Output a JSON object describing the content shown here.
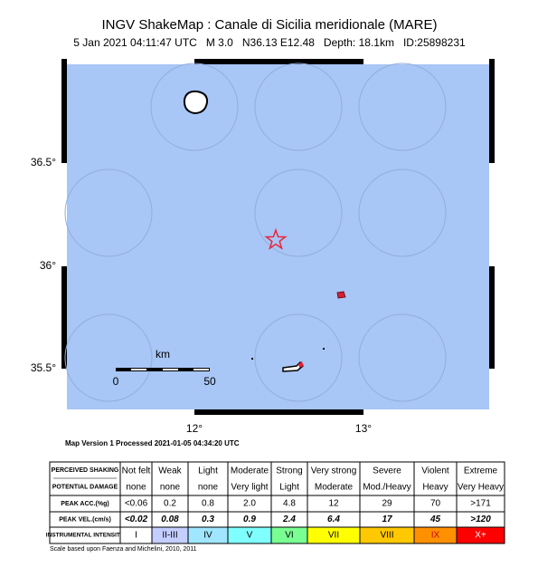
{
  "header": {
    "title": "INGV ShakeMap : Canale di Sicilia meridionale (MARE)",
    "subtitle": "5 Jan 2021 04:11:47 UTC   M 3.0   N36.13 E12.48   Depth: 18.1km   ID:25898231"
  },
  "map": {
    "lat_labels": [
      "36.5°",
      "36°",
      "35.5°"
    ],
    "lon_labels": [
      "12°",
      "13°"
    ],
    "scale": {
      "unit": "km",
      "start": "0",
      "end": "50"
    }
  },
  "version_note": "Map Version 1 Processed 2021-01-05 04:34:20 UTC",
  "table": {
    "row_headers": [
      "PERCEIVED SHAKING",
      "POTENTIAL DAMAGE",
      "PEAK ACC.(%g)",
      "PEAK VEL.(cm/s)",
      "INSTRUMENTAL INTENSITY"
    ],
    "rows": [
      [
        "Not felt",
        "Weak",
        "Light",
        "Moderate",
        "Strong",
        "Very strong",
        "Severe",
        "Violent",
        "Extreme"
      ],
      [
        "none",
        "none",
        "none",
        "Very light",
        "Light",
        "Moderate",
        "Mod./Heavy",
        "Heavy",
        "Very Heavy"
      ],
      [
        "<0.06",
        "0.2",
        "0.8",
        "2.0",
        "4.8",
        "12",
        "29",
        "70",
        ">171"
      ],
      [
        "<0.02",
        "0.08",
        "0.3",
        "0.9",
        "2.4",
        "6.4",
        "17",
        "45",
        ">120"
      ],
      [
        "I",
        "II-III",
        "IV",
        "V",
        "VI",
        "VII",
        "VIII",
        "IX",
        "X+"
      ]
    ]
  },
  "credit": "Scale based upon Faenza and Michelini, 2010, 2011"
}
